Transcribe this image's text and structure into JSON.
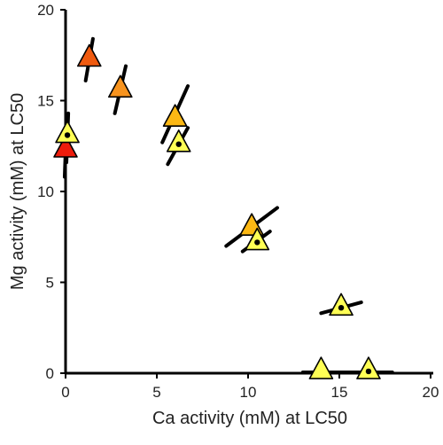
{
  "chart_data": {
    "type": "scatter",
    "xlabel": "Ca activity (mM) at LC50",
    "ylabel": "Mg activity (mM) at LC50",
    "xlim": [
      0,
      20
    ],
    "ylim": [
      0,
      20
    ],
    "xticks": [
      "0",
      "5",
      "10",
      "15",
      "20"
    ],
    "yticks": [
      "0",
      "5",
      "10",
      "15",
      "20"
    ],
    "grid": false,
    "legend": "none",
    "marker_shape": "triangle",
    "point_colors": {
      "red": "#ee1c0c",
      "dark_orange": "#f05a0f",
      "orange": "#f7931e",
      "light_orange": "#fcb814",
      "yellow": "#ffff55",
      "line": "#000000"
    },
    "points": [
      {
        "x": 0.0,
        "y": 12.3,
        "color": "red",
        "dot": false,
        "line": {
          "x1": -0.05,
          "y1": 10.8,
          "x2": 0.05,
          "y2": 13.7
        }
      },
      {
        "x": 0.1,
        "y": 13.1,
        "color": "yellow",
        "dot": true,
        "line": {
          "x1": 0.05,
          "y1": 11.6,
          "x2": 0.15,
          "y2": 14.3
        }
      },
      {
        "x": 1.3,
        "y": 17.3,
        "color": "dark_orange",
        "dot": false,
        "line": {
          "x1": 1.1,
          "y1": 16.1,
          "x2": 1.5,
          "y2": 18.4
        }
      },
      {
        "x": 3.0,
        "y": 15.6,
        "color": "orange",
        "dot": false,
        "line": {
          "x1": 2.7,
          "y1": 14.3,
          "x2": 3.3,
          "y2": 16.9
        }
      },
      {
        "x": 6.0,
        "y": 14.0,
        "color": "light_orange",
        "dot": false,
        "line": {
          "x1": 5.3,
          "y1": 12.7,
          "x2": 6.7,
          "y2": 15.8
        }
      },
      {
        "x": 6.2,
        "y": 12.6,
        "color": "yellow",
        "dot": true,
        "line": {
          "x1": 5.6,
          "y1": 11.5,
          "x2": 6.7,
          "y2": 13.5
        }
      },
      {
        "x": 10.2,
        "y": 8.0,
        "color": "light_orange",
        "dot": false,
        "line": {
          "x1": 8.8,
          "y1": 7.0,
          "x2": 11.6,
          "y2": 9.1
        }
      },
      {
        "x": 10.5,
        "y": 7.2,
        "color": "yellow",
        "dot": true,
        "line": {
          "x1": 9.7,
          "y1": 6.7,
          "x2": 11.2,
          "y2": 7.8
        }
      },
      {
        "x": 15.1,
        "y": 3.6,
        "color": "yellow",
        "dot": true,
        "line": {
          "x1": 14.0,
          "y1": 3.3,
          "x2": 16.2,
          "y2": 3.9
        }
      },
      {
        "x": 14.0,
        "y": 0.1,
        "color": "yellow",
        "dot": false,
        "line": {
          "x1": 13.0,
          "y1": 0.05,
          "x2": 15.1,
          "y2": 0.05
        }
      },
      {
        "x": 16.6,
        "y": 0.1,
        "color": "yellow",
        "dot": true,
        "line": {
          "x1": 15.0,
          "y1": 0.05,
          "x2": 17.9,
          "y2": 0.05
        }
      }
    ]
  }
}
